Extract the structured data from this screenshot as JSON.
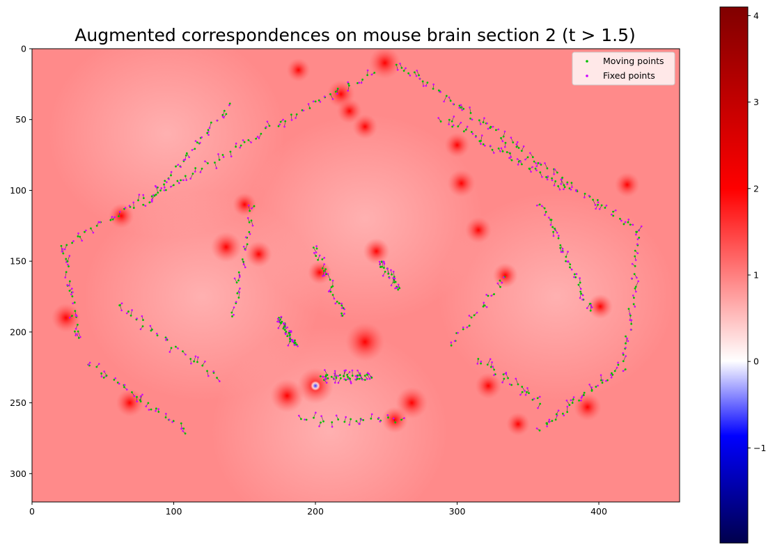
{
  "chart_data": {
    "type": "scatter",
    "title": "Augmented correspondences on mouse brain section 2 (t > 1.5)",
    "xlabel": "",
    "ylabel": "",
    "xlim": [
      0,
      457
    ],
    "ylim": [
      320,
      0
    ],
    "x_ticks": [
      0,
      100,
      200,
      300,
      400
    ],
    "y_ticks": [
      0,
      50,
      100,
      150,
      200,
      250,
      300
    ],
    "grid": false,
    "background_colormap": "seismic",
    "background_base_value": 1.0,
    "legend": {
      "position": "top-right",
      "entries": [
        "Moving points",
        "Fixed points"
      ]
    },
    "series": [
      {
        "name": "Moving points",
        "color": "#00c000",
        "marker": "dot"
      },
      {
        "name": "Fixed points",
        "color": "#cc00ff",
        "marker": "dot"
      }
    ],
    "hotspots": [
      {
        "x": 249,
        "y": 10,
        "t": 2.3
      },
      {
        "x": 218,
        "y": 32,
        "t": 2.0
      },
      {
        "x": 224,
        "y": 44,
        "t": 1.8
      },
      {
        "x": 188,
        "y": 15,
        "t": 1.7
      },
      {
        "x": 137,
        "y": 140,
        "t": 2.2
      },
      {
        "x": 160,
        "y": 145,
        "t": 1.9
      },
      {
        "x": 235,
        "y": 207,
        "t": 2.8
      },
      {
        "x": 200,
        "y": 238,
        "t": 2.6
      },
      {
        "x": 180,
        "y": 245,
        "t": 2.4
      },
      {
        "x": 268,
        "y": 250,
        "t": 2.3
      },
      {
        "x": 256,
        "y": 262,
        "t": 1.9
      },
      {
        "x": 24,
        "y": 190,
        "t": 2.1
      },
      {
        "x": 69,
        "y": 250,
        "t": 2.0
      },
      {
        "x": 63,
        "y": 118,
        "t": 1.8
      },
      {
        "x": 300,
        "y": 68,
        "t": 1.8
      },
      {
        "x": 303,
        "y": 95,
        "t": 2.0
      },
      {
        "x": 315,
        "y": 128,
        "t": 1.9
      },
      {
        "x": 334,
        "y": 160,
        "t": 1.8
      },
      {
        "x": 322,
        "y": 238,
        "t": 1.9
      },
      {
        "x": 392,
        "y": 253,
        "t": 2.0
      },
      {
        "x": 420,
        "y": 96,
        "t": 1.8
      },
      {
        "x": 401,
        "y": 182,
        "t": 1.8
      },
      {
        "x": 203,
        "y": 158,
        "t": 1.7
      },
      {
        "x": 243,
        "y": 143,
        "t": 1.9
      },
      {
        "x": 150,
        "y": 110,
        "t": 1.7
      },
      {
        "x": 343,
        "y": 265,
        "t": 1.7
      },
      {
        "x": 235,
        "y": 55,
        "t": 1.8
      },
      {
        "x": 200,
        "y": 238,
        "t": -1.3
      }
    ],
    "correspondence_clusters": [
      {
        "x0": 20,
        "y0": 140,
        "x1": 240,
        "y1": 16,
        "n": 60
      },
      {
        "x0": 258,
        "y0": 10,
        "x1": 428,
        "y1": 130,
        "n": 62
      },
      {
        "x0": 24,
        "y0": 145,
        "x1": 32,
        "y1": 205,
        "n": 18
      },
      {
        "x0": 428,
        "y0": 130,
        "x1": 418,
        "y1": 225,
        "n": 22
      },
      {
        "x0": 38,
        "y0": 222,
        "x1": 110,
        "y1": 270,
        "n": 24
      },
      {
        "x0": 360,
        "y0": 268,
        "x1": 415,
        "y1": 225,
        "n": 24
      },
      {
        "x0": 60,
        "y0": 180,
        "x1": 130,
        "y1": 232,
        "n": 22
      },
      {
        "x0": 140,
        "y0": 40,
        "x1": 80,
        "y1": 110,
        "n": 26
      },
      {
        "x0": 175,
        "y0": 190,
        "x1": 185,
        "y1": 210,
        "n": 26
      },
      {
        "x0": 205,
        "y0": 232,
        "x1": 240,
        "y1": 232,
        "n": 34
      },
      {
        "x0": 190,
        "y0": 262,
        "x1": 260,
        "y1": 262,
        "n": 18
      },
      {
        "x0": 290,
        "y0": 50,
        "x1": 380,
        "y1": 100,
        "n": 34
      },
      {
        "x0": 315,
        "y0": 220,
        "x1": 360,
        "y1": 250,
        "n": 18
      },
      {
        "x0": 142,
        "y0": 190,
        "x1": 155,
        "y1": 110,
        "n": 18
      },
      {
        "x0": 200,
        "y0": 140,
        "x1": 220,
        "y1": 190,
        "n": 20
      },
      {
        "x0": 245,
        "y0": 150,
        "x1": 260,
        "y1": 170,
        "n": 18
      },
      {
        "x0": 360,
        "y0": 110,
        "x1": 395,
        "y1": 185,
        "n": 26
      },
      {
        "x0": 295,
        "y0": 210,
        "x1": 335,
        "y1": 160,
        "n": 14
      }
    ]
  },
  "colorbar": {
    "ticks": [
      "4",
      "3",
      "2",
      "1",
      "0",
      "−1"
    ],
    "tick_values": [
      4,
      3,
      2,
      1,
      0,
      -1
    ],
    "vmin": -2.1,
    "vmax": 4.1,
    "colors": [
      "#00004c",
      "#0000ff",
      "#ffffff",
      "#ff0000",
      "#800000"
    ]
  }
}
